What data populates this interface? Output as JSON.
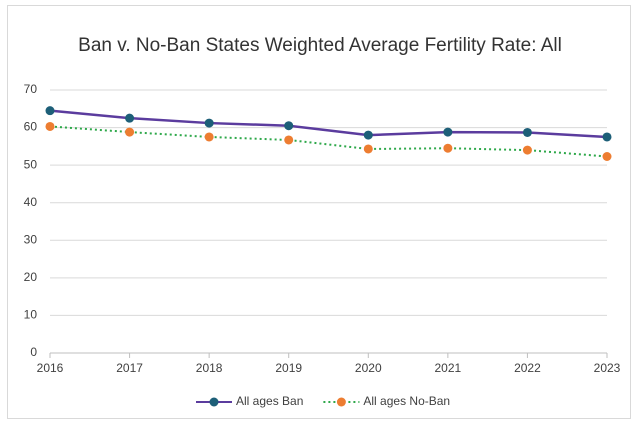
{
  "chart_data": {
    "type": "line",
    "title": "Ban v. No-Ban States Weighted Average Fertility Rate: All",
    "x": [
      2016,
      2017,
      2018,
      2019,
      2020,
      2021,
      2022,
      2023
    ],
    "xlim": [
      2016,
      2023
    ],
    "xticks": [
      2016,
      2017,
      2018,
      2019,
      2020,
      2021,
      2022,
      2023
    ],
    "ylim": [
      0,
      70
    ],
    "yticks": [
      0,
      10,
      20,
      30,
      40,
      50,
      60,
      70
    ],
    "grid": true,
    "legend": "bottom",
    "series": [
      {
        "name": "All ages Ban",
        "color": "#5b3c9e",
        "marker_color": "#1d5f78",
        "dash": "solid",
        "values": [
          64.5,
          62.5,
          61.2,
          60.5,
          58.0,
          58.8,
          58.7,
          57.5
        ]
      },
      {
        "name": "All ages No-Ban",
        "color": "#2ea84a",
        "marker_color": "#ed7d31",
        "dash": "dotted",
        "values": [
          60.3,
          58.8,
          57.5,
          56.7,
          54.3,
          54.5,
          54.0,
          52.3
        ]
      }
    ]
  }
}
